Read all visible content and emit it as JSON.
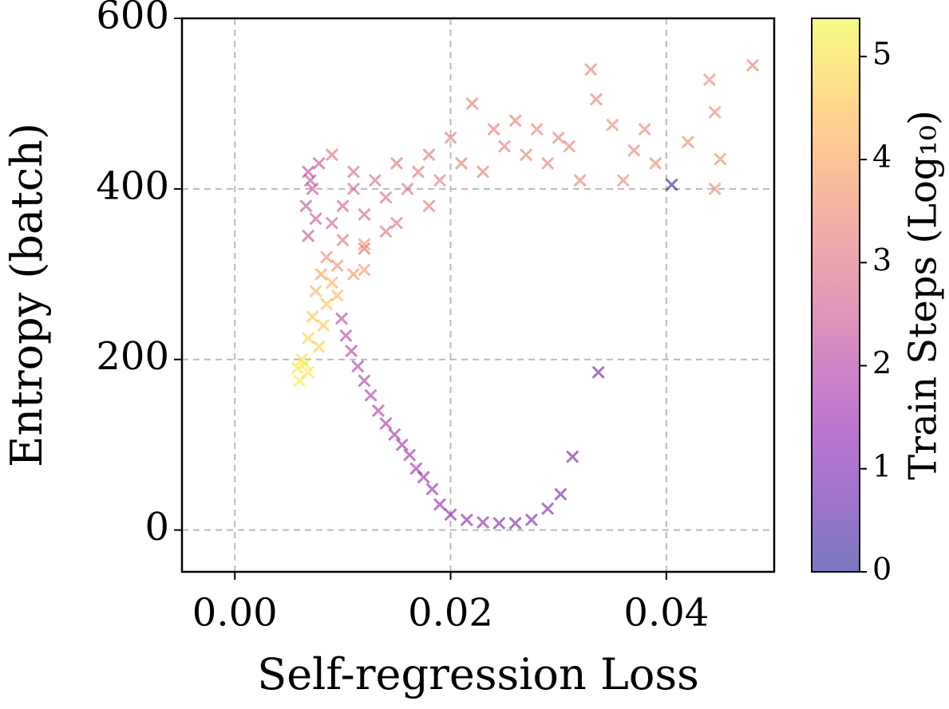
{
  "chart_data": {
    "type": "scatter",
    "marker": "x",
    "colormap": "plasma",
    "grid": true,
    "xlabel": "Self-regression Loss",
    "ylabel": "Entropy (batch)",
    "colorbar_label": "Train Steps (Log₁₀)",
    "xlim": [
      -0.0049,
      0.05
    ],
    "ylim": [
      -49,
      600
    ],
    "clim": [
      0,
      5.37
    ],
    "xticks": [
      {
        "value": 0,
        "label": "0.00"
      },
      0.02,
      0.04
    ],
    "yticks": [
      0,
      200,
      400,
      600
    ],
    "cticks": [
      0,
      1,
      2,
      3,
      4,
      5
    ],
    "x": [
      0.0405,
      0.0337,
      0.0313,
      0.0302,
      0.029,
      0.0275,
      0.026,
      0.0245,
      0.023,
      0.0215,
      0.02,
      0.019,
      0.0183,
      0.0175,
      0.0168,
      0.0162,
      0.0155,
      0.0148,
      0.014,
      0.0133,
      0.0126,
      0.012,
      0.0114,
      0.0108,
      0.0103,
      0.0099,
      0.0068,
      0.0072,
      0.0066,
      0.0075,
      0.0068,
      0.0078,
      0.007,
      0.009,
      0.01,
      0.011,
      0.012,
      0.013,
      0.014,
      0.015,
      0.016,
      0.017,
      0.018,
      0.019,
      0.02,
      0.021,
      0.022,
      0.023,
      0.024,
      0.025,
      0.026,
      0.027,
      0.028,
      0.029,
      0.03,
      0.031,
      0.032,
      0.033,
      0.0335,
      0.035,
      0.036,
      0.037,
      0.038,
      0.039,
      0.042,
      0.044,
      0.0445,
      0.0445,
      0.045,
      0.048,
      0.012,
      0.01,
      0.015,
      0.018,
      0.014,
      0.011,
      0.009,
      0.0085,
      0.0095,
      0.011,
      0.012,
      0.012,
      0.008,
      0.009,
      0.0075,
      0.0085,
      0.0095,
      0.0072,
      0.0082,
      0.0068,
      0.0078,
      0.0062,
      0.0058,
      0.0068,
      0.006,
      0.0065
    ],
    "y": [
      405,
      185,
      86,
      42,
      25,
      12,
      8,
      8,
      9,
      12,
      18,
      30,
      48,
      62,
      72,
      88,
      100,
      112,
      125,
      140,
      158,
      175,
      192,
      210,
      228,
      248,
      420,
      400,
      380,
      365,
      345,
      430,
      410,
      360,
      380,
      400,
      370,
      410,
      390,
      430,
      400,
      420,
      440,
      410,
      460,
      430,
      500,
      420,
      470,
      450,
      480,
      440,
      470,
      430,
      460,
      450,
      410,
      540,
      505,
      475,
      410,
      445,
      470,
      430,
      455,
      528,
      490,
      400,
      435,
      545,
      330,
      340,
      360,
      380,
      350,
      420,
      440,
      320,
      310,
      300,
      305,
      335,
      300,
      290,
      280,
      265,
      275,
      250,
      240,
      225,
      215,
      200,
      190,
      185,
      175,
      195
    ],
    "c": [
      0.3,
      0.7,
      0.9,
      1.0,
      1.1,
      1.15,
      1.2,
      1.25,
      1.3,
      1.35,
      1.4,
      1.45,
      1.5,
      1.55,
      1.6,
      1.65,
      1.7,
      1.75,
      1.8,
      1.85,
      1.9,
      1.95,
      2.0,
      2.05,
      2.1,
      2.15,
      2.3,
      2.35,
      2.4,
      2.45,
      2.5,
      2.4,
      2.45,
      2.7,
      2.8,
      2.9,
      2.8,
      3.0,
      3.0,
      3.1,
      3.1,
      3.1,
      3.2,
      3.2,
      3.2,
      3.3,
      3.3,
      3.3,
      3.3,
      3.3,
      3.3,
      3.4,
      3.4,
      3.4,
      3.4,
      3.4,
      3.4,
      3.4,
      3.4,
      3.5,
      3.5,
      3.5,
      3.5,
      3.5,
      3.5,
      3.5,
      3.5,
      3.5,
      3.5,
      3.4,
      3.0,
      3.1,
      3.1,
      3.2,
      3.1,
      3.0,
      3.0,
      3.6,
      3.7,
      3.8,
      3.8,
      3.7,
      4.0,
      4.2,
      4.3,
      4.4,
      4.3,
      4.6,
      4.6,
      4.8,
      4.8,
      5.0,
      5.1,
      5.1,
      5.2,
      5.2
    ]
  }
}
